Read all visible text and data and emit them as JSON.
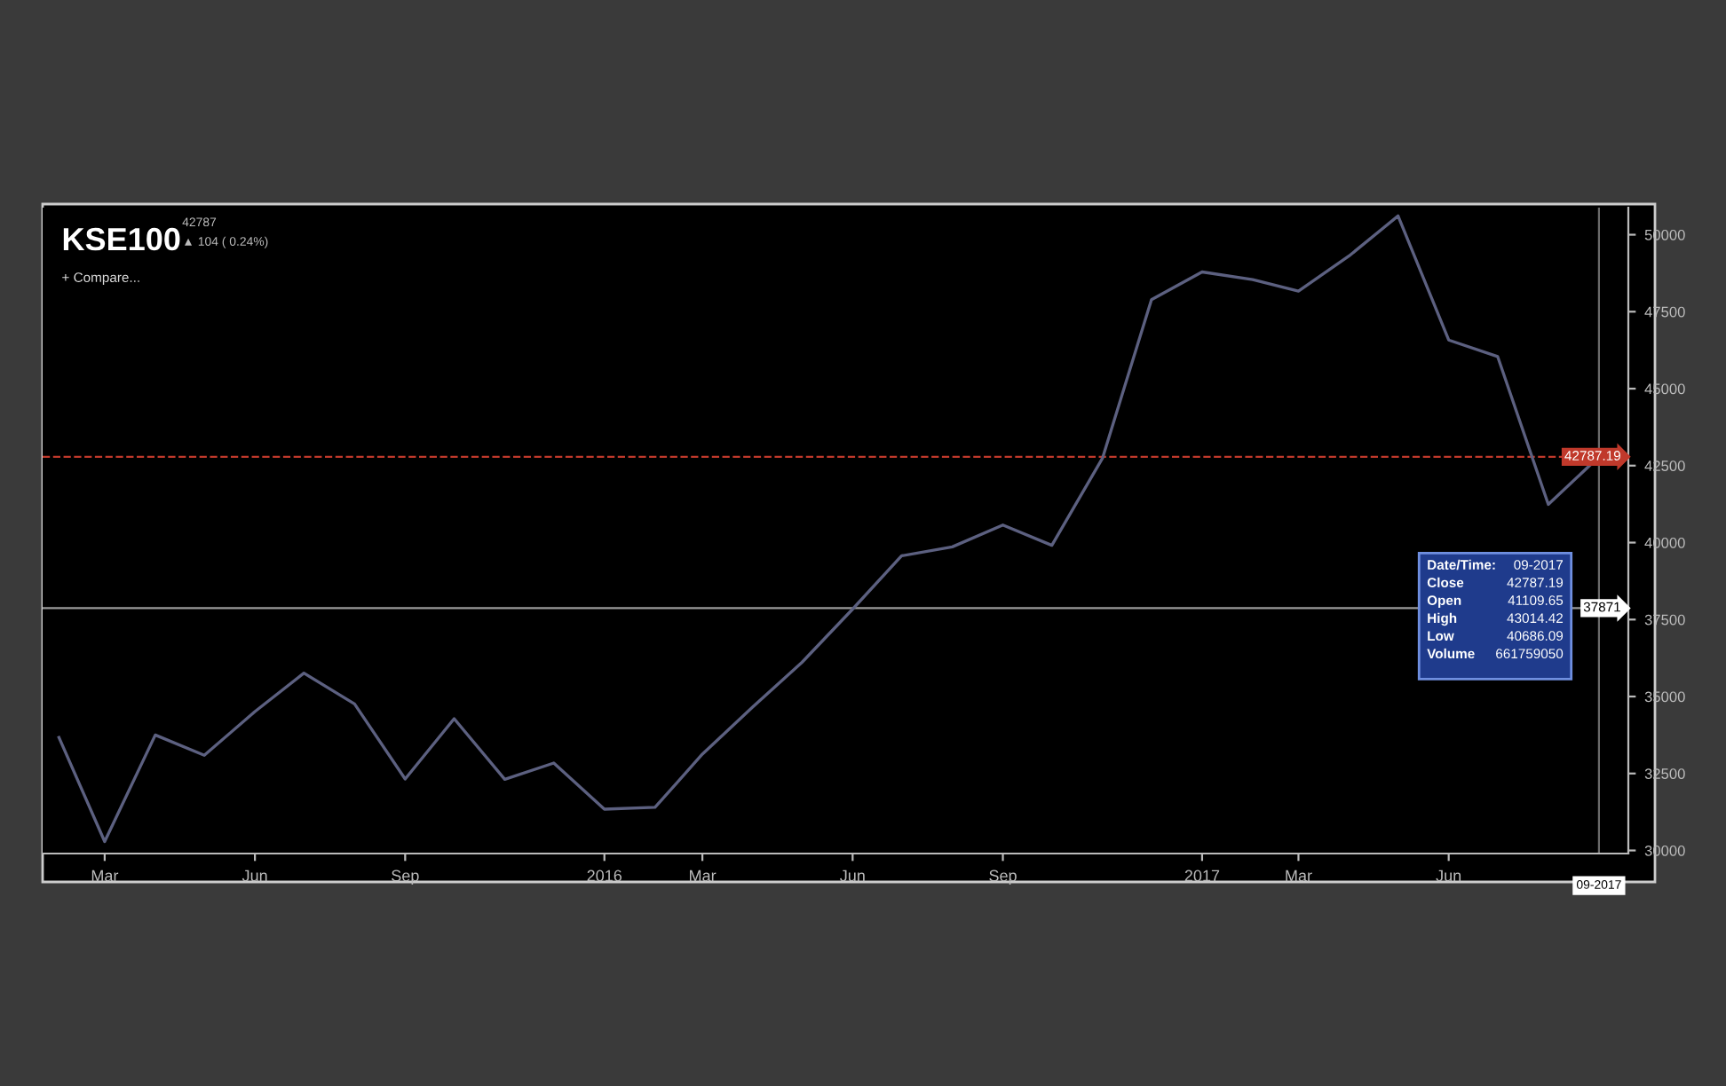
{
  "chart_data": {
    "type": "line",
    "title": "KSE100",
    "x": [
      "2015-02",
      "2015-03",
      "2015-04",
      "2015-05",
      "2015-06",
      "2015-07",
      "2015-08",
      "2015-09",
      "2015-10",
      "2015-11",
      "2015-12",
      "2016-01",
      "2016-02",
      "2016-03",
      "2016-04",
      "2016-05",
      "2016-06",
      "2016-07",
      "2016-08",
      "2016-09",
      "2016-10",
      "2016-11",
      "2016-12",
      "2017-01",
      "2017-02",
      "2017-03",
      "2017-04",
      "2017-05",
      "2017-06",
      "2017-07",
      "2017-08",
      "2017-09"
    ],
    "series": [
      {
        "color": "#5c6080",
        "values": [
          33670,
          30290,
          33750,
          33090,
          34510,
          35760,
          34760,
          32320,
          34280,
          32310,
          32840,
          31340,
          31400,
          33130,
          34670,
          36110,
          37840,
          39570,
          39860,
          40570,
          39910,
          42740,
          47890,
          48790,
          48540,
          48170,
          49310,
          50610,
          46580,
          46040,
          41240,
          42787.19
        ]
      }
    ],
    "xlim": [
      "2015-01-22",
      "2017-09-19"
    ],
    "xticks": [
      {
        "value": "2015-03",
        "label": "Mar"
      },
      {
        "value": "2015-06",
        "label": "Jun"
      },
      {
        "value": "2015-09",
        "label": "Sep"
      },
      {
        "value": "2016-01",
        "label": "2016"
      },
      {
        "value": "2016-03",
        "label": "Mar"
      },
      {
        "value": "2016-06",
        "label": "Jun"
      },
      {
        "value": "2016-09",
        "label": "Sep"
      },
      {
        "value": "2017-01",
        "label": "2017"
      },
      {
        "value": "2017-03",
        "label": "Mar"
      },
      {
        "value": "2017-06",
        "label": "Jun"
      }
    ],
    "ylim": [
      29900,
      50880
    ],
    "yticks": [
      30000,
      32500,
      35000,
      37500,
      40000,
      42500,
      45000,
      47500,
      50000
    ],
    "grid": false,
    "legend": false,
    "marker": "none",
    "line_style": "solid",
    "ref_lines": [
      {
        "axis": "y",
        "value": 42787.19,
        "label": "42787.19",
        "color": "#c0392b",
        "line_style": "dashed"
      },
      {
        "axis": "y",
        "value": 37871,
        "label": "37871",
        "color": "#9a9a9a",
        "line_style": "solid"
      },
      {
        "axis": "x",
        "value": "2017-09",
        "label": "09-2017",
        "color": "#6a6a6a",
        "line_style": "solid"
      }
    ],
    "annotations": [
      "42787",
      "▲ 104 ( 0.24%)",
      "+ Compare...",
      "Date/Time:",
      "09-2017",
      "Close",
      "42787.19",
      "Open",
      "41109.65",
      "High",
      "43014.42",
      "Low",
      "40686.09",
      "Volume",
      "661759050"
    ]
  }
}
